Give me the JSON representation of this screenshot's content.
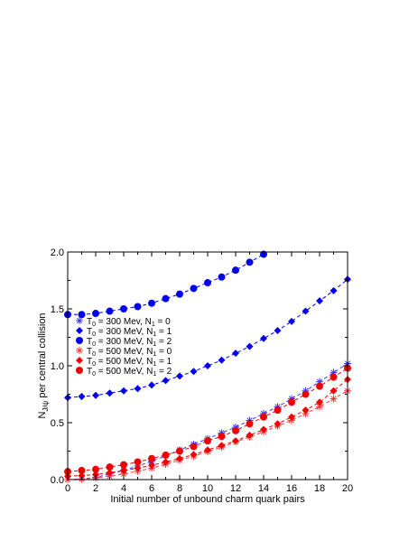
{
  "chart_data": {
    "type": "scatter",
    "xlabel": "Initial number of unbound charm quark pairs",
    "ylabel": {
      "main": "N",
      "sub": "J/ψ",
      "rest": " per central collision"
    },
    "xlim": [
      0,
      20
    ],
    "ylim": [
      0,
      2.0
    ],
    "x_ticks": [
      0,
      2,
      4,
      6,
      8,
      10,
      12,
      14,
      16,
      18,
      20
    ],
    "y_ticks": [
      "0.0",
      "0.5",
      "1.0",
      "1.5",
      "2.0"
    ],
    "legend_position": "left-middle",
    "series": [
      {
        "label": {
          "a": "T",
          "b": "0",
          "c": " = 300 Mev, N",
          "d": "1",
          "e": " = 0"
        },
        "color": "#3a3aff",
        "marker": "asterisk",
        "x": [
          0,
          1,
          2,
          3,
          4,
          5,
          6,
          7,
          8,
          9,
          10,
          11,
          12,
          13,
          14,
          15,
          16,
          17,
          18,
          19,
          20
        ],
        "values": [
          0.0,
          0.005,
          0.02,
          0.05,
          0.08,
          0.12,
          0.16,
          0.21,
          0.26,
          0.31,
          0.36,
          0.41,
          0.46,
          0.52,
          0.58,
          0.64,
          0.71,
          0.78,
          0.86,
          0.94,
          1.02
        ]
      },
      {
        "label": {
          "a": "T",
          "b": "0",
          "c": " = 300 MeV, N",
          "d": "1",
          "e": " = 1"
        },
        "color": "#0000ee",
        "marker": "diamond",
        "x": [
          0,
          1,
          2,
          3,
          4,
          5,
          6,
          7,
          8,
          9,
          10,
          11,
          12,
          13,
          14,
          15,
          16,
          17,
          18,
          19,
          20
        ],
        "values": [
          0.72,
          0.73,
          0.74,
          0.76,
          0.78,
          0.8,
          0.83,
          0.87,
          0.91,
          0.95,
          1.0,
          1.05,
          1.11,
          1.17,
          1.24,
          1.31,
          1.39,
          1.48,
          1.57,
          1.66,
          1.76
        ]
      },
      {
        "label": {
          "a": "T",
          "b": "0",
          "c": " = 300 MeV, N",
          "d": "1",
          "e": " = 2"
        },
        "color": "#0000ee",
        "marker": "circle",
        "x": [
          0,
          1,
          2,
          3,
          4,
          5,
          6,
          7,
          8,
          9,
          10,
          11,
          12,
          13,
          14
        ],
        "values": [
          1.45,
          1.45,
          1.46,
          1.48,
          1.5,
          1.52,
          1.55,
          1.59,
          1.63,
          1.68,
          1.73,
          1.78,
          1.84,
          1.91,
          1.98
        ]
      },
      {
        "label": {
          "a": "T",
          "b": "0",
          "c": " = 500 MeV, N",
          "d": "1",
          "e": " = 0"
        },
        "color": "#ff3b3b",
        "marker": "asterisk",
        "x": [
          0,
          1,
          2,
          3,
          4,
          5,
          6,
          7,
          8,
          9,
          10,
          11,
          12,
          13,
          14,
          15,
          16,
          17,
          18,
          19,
          20
        ],
        "values": [
          0.0,
          0.005,
          0.015,
          0.03,
          0.05,
          0.075,
          0.1,
          0.135,
          0.17,
          0.205,
          0.245,
          0.285,
          0.33,
          0.375,
          0.42,
          0.47,
          0.52,
          0.58,
          0.64,
          0.71,
          0.78
        ]
      },
      {
        "label": {
          "a": "T",
          "b": "0",
          "c": " = 500 MeV, N",
          "d": "1",
          "e": " = 1"
        },
        "color": "#ee0000",
        "marker": "diamond",
        "x": [
          0,
          1,
          2,
          3,
          4,
          5,
          6,
          7,
          8,
          9,
          10,
          11,
          12,
          13,
          14,
          15,
          16,
          17,
          18,
          19,
          20
        ],
        "values": [
          0.03,
          0.035,
          0.045,
          0.06,
          0.08,
          0.1,
          0.125,
          0.155,
          0.185,
          0.22,
          0.26,
          0.3,
          0.34,
          0.39,
          0.44,
          0.49,
          0.55,
          0.61,
          0.68,
          0.78,
          0.88
        ]
      },
      {
        "label": {
          "a": "T",
          "b": "0",
          "c": " = 500 MeV, N",
          "d": "1",
          "e": " = 2"
        },
        "color": "#ee0000",
        "marker": "circle",
        "x": [
          0,
          1,
          2,
          3,
          4,
          5,
          6,
          7,
          8,
          9,
          10,
          11,
          12,
          13,
          14,
          15,
          16,
          17,
          18,
          19,
          20
        ],
        "values": [
          0.07,
          0.08,
          0.09,
          0.11,
          0.13,
          0.155,
          0.185,
          0.215,
          0.25,
          0.29,
          0.34,
          0.38,
          0.43,
          0.49,
          0.55,
          0.61,
          0.68,
          0.75,
          0.82,
          0.9,
          0.98
        ]
      }
    ]
  }
}
